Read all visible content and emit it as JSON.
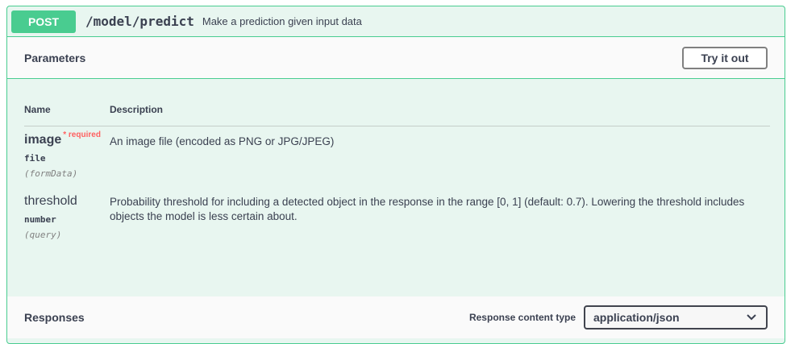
{
  "operation": {
    "method": "POST",
    "path": "/model/predict",
    "summary": "Make a prediction given input data",
    "accent_color": "#49cc90"
  },
  "parameters": {
    "title": "Parameters",
    "try_button": "Try it out",
    "columns": {
      "name": "Name",
      "description": "Description"
    },
    "items": [
      {
        "name": "image",
        "required_label": "* required",
        "type": "file",
        "in": "(formData)",
        "description": "An image file (encoded as PNG or JPG/JPEG)"
      },
      {
        "name": "threshold",
        "type": "number",
        "in": "(query)",
        "description": "Probability threshold for including a detected object in the response in the range [0, 1] (default: 0.7). Lowering the threshold includes objects the model is less certain about."
      }
    ]
  },
  "responses": {
    "title": "Responses",
    "content_type_label": "Response content type",
    "content_type_value": "application/json"
  }
}
